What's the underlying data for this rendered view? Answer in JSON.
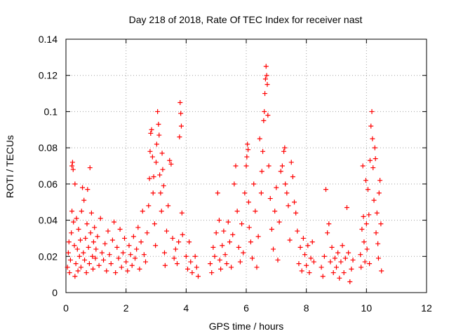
{
  "chart_data": {
    "type": "scatter",
    "title": "Day 218 of 2018, Rate Of TEC Index for receiver nast",
    "xlabel": "GPS time / hours",
    "ylabel": "ROTI / TECUs",
    "xlim": [
      0,
      12
    ],
    "ylim": [
      0,
      0.14
    ],
    "xticks": [
      0,
      2,
      4,
      6,
      8,
      10,
      12
    ],
    "yticks": [
      0,
      0.02,
      0.04,
      0.06,
      0.08,
      0.1,
      0.12,
      0.14
    ],
    "xtick_labels": [
      "0",
      "2",
      "4",
      "6",
      "8",
      "10",
      "12"
    ],
    "ytick_labels": [
      "0",
      "0.02",
      "0.04",
      "0.06",
      "0.08",
      "0.1",
      "0.12",
      "0.14"
    ],
    "grid": true,
    "marker": "+",
    "series": [
      {
        "name": "ROTI",
        "color": "#ff0000",
        "points": [
          [
            0.05,
            0.014
          ],
          [
            0.08,
            0.022
          ],
          [
            0.1,
            0.028
          ],
          [
            0.12,
            0.011
          ],
          [
            0.15,
            0.018
          ],
          [
            0.18,
            0.033
          ],
          [
            0.2,
            0.045
          ],
          [
            0.2,
            0.07
          ],
          [
            0.22,
            0.072
          ],
          [
            0.24,
            0.068
          ],
          [
            0.25,
            0.039
          ],
          [
            0.28,
            0.026
          ],
          [
            0.3,
            0.06
          ],
          [
            0.3,
            0.009
          ],
          [
            0.33,
            0.016
          ],
          [
            0.35,
            0.041
          ],
          [
            0.38,
            0.024
          ],
          [
            0.4,
            0.012
          ],
          [
            0.42,
            0.035
          ],
          [
            0.45,
            0.02
          ],
          [
            0.48,
            0.029
          ],
          [
            0.5,
            0.014
          ],
          [
            0.52,
            0.045
          ],
          [
            0.55,
            0.058
          ],
          [
            0.58,
            0.022
          ],
          [
            0.6,
            0.051
          ],
          [
            0.62,
            0.018
          ],
          [
            0.65,
            0.03
          ],
          [
            0.68,
            0.011
          ],
          [
            0.7,
            0.038
          ],
          [
            0.72,
            0.057
          ],
          [
            0.75,
            0.025
          ],
          [
            0.78,
            0.016
          ],
          [
            0.8,
            0.069
          ],
          [
            0.82,
            0.033
          ],
          [
            0.85,
            0.044
          ],
          [
            0.88,
            0.02
          ],
          [
            0.9,
            0.013
          ],
          [
            0.92,
            0.028
          ],
          [
            0.95,
            0.036
          ],
          [
            0.98,
            0.019
          ],
          [
            1.0,
            0.024
          ],
          [
            1.05,
            0.031
          ],
          [
            1.1,
            0.015
          ],
          [
            1.15,
            0.041
          ],
          [
            1.2,
            0.022
          ],
          [
            1.25,
            0.018
          ],
          [
            1.3,
            0.027
          ],
          [
            1.35,
            0.012
          ],
          [
            1.4,
            0.034
          ],
          [
            1.45,
            0.021
          ],
          [
            1.5,
            0.016
          ],
          [
            1.55,
            0.029
          ],
          [
            1.6,
            0.039
          ],
          [
            1.65,
            0.011
          ],
          [
            1.7,
            0.025
          ],
          [
            1.75,
            0.019
          ],
          [
            1.8,
            0.035
          ],
          [
            1.85,
            0.014
          ],
          [
            1.9,
            0.022
          ],
          [
            1.95,
            0.03
          ],
          [
            2.0,
            0.017
          ],
          [
            2.05,
            0.012
          ],
          [
            2.1,
            0.026
          ],
          [
            2.15,
            0.021
          ],
          [
            2.2,
            0.015
          ],
          [
            2.25,
            0.031
          ],
          [
            2.3,
            0.019
          ],
          [
            2.35,
            0.024
          ],
          [
            2.4,
            0.036
          ],
          [
            2.45,
            0.013
          ],
          [
            2.5,
            0.028
          ],
          [
            2.55,
            0.045
          ],
          [
            2.6,
            0.021
          ],
          [
            2.65,
            0.017
          ],
          [
            2.7,
            0.033
          ],
          [
            2.75,
            0.048
          ],
          [
            2.78,
            0.063
          ],
          [
            2.8,
            0.078
          ],
          [
            2.82,
            0.088
          ],
          [
            2.85,
            0.09
          ],
          [
            2.88,
            0.075
          ],
          [
            2.9,
            0.055
          ],
          [
            2.92,
            0.064
          ],
          [
            2.95,
            0.038
          ],
          [
            2.98,
            0.026
          ],
          [
            3.0,
            0.072
          ],
          [
            3.02,
            0.082
          ],
          [
            3.05,
            0.1
          ],
          [
            3.08,
            0.093
          ],
          [
            3.1,
            0.087
          ],
          [
            3.12,
            0.065
          ],
          [
            3.15,
            0.055
          ],
          [
            3.18,
            0.045
          ],
          [
            3.2,
            0.077
          ],
          [
            3.22,
            0.068
          ],
          [
            3.25,
            0.059
          ],
          [
            3.28,
            0.022
          ],
          [
            3.3,
            0.015
          ],
          [
            3.35,
            0.034
          ],
          [
            3.4,
            0.048
          ],
          [
            3.45,
            0.073
          ],
          [
            3.5,
            0.071
          ],
          [
            3.55,
            0.03
          ],
          [
            3.6,
            0.019
          ],
          [
            3.65,
            0.024
          ],
          [
            3.7,
            0.016
          ],
          [
            3.75,
            0.028
          ],
          [
            3.78,
            0.086
          ],
          [
            3.8,
            0.105
          ],
          [
            3.82,
            0.099
          ],
          [
            3.84,
            0.092
          ],
          [
            3.86,
            0.044
          ],
          [
            3.88,
            0.032
          ],
          [
            4.0,
            0.02
          ],
          [
            4.05,
            0.013
          ],
          [
            4.1,
            0.028
          ],
          [
            4.15,
            0.017
          ],
          [
            4.2,
            0.011
          ],
          [
            4.3,
            0.02
          ],
          [
            4.35,
            0.014
          ],
          [
            4.4,
            0.009
          ],
          [
            4.8,
            0.016
          ],
          [
            4.85,
            0.011
          ],
          [
            4.9,
            0.025
          ],
          [
            4.95,
            0.02
          ],
          [
            5.0,
            0.033
          ],
          [
            5.05,
            0.055
          ],
          [
            5.1,
            0.04
          ],
          [
            5.12,
            0.018
          ],
          [
            5.15,
            0.013
          ],
          [
            5.2,
            0.026
          ],
          [
            5.25,
            0.034
          ],
          [
            5.3,
            0.021
          ],
          [
            5.35,
            0.016
          ],
          [
            5.4,
            0.039
          ],
          [
            5.45,
            0.028
          ],
          [
            5.5,
            0.014
          ],
          [
            5.55,
            0.032
          ],
          [
            5.6,
            0.06
          ],
          [
            5.65,
            0.07
          ],
          [
            5.7,
            0.045
          ],
          [
            5.75,
            0.025
          ],
          [
            5.8,
            0.017
          ],
          [
            5.85,
            0.038
          ],
          [
            5.9,
            0.022
          ],
          [
            5.95,
            0.055
          ],
          [
            6.0,
            0.07
          ],
          [
            6.02,
            0.075
          ],
          [
            6.04,
            0.082
          ],
          [
            6.06,
            0.079
          ],
          [
            6.08,
            0.05
          ],
          [
            6.1,
            0.036
          ],
          [
            6.15,
            0.028
          ],
          [
            6.2,
            0.019
          ],
          [
            6.25,
            0.06
          ],
          [
            6.3,
            0.045
          ],
          [
            6.35,
            0.014
          ],
          [
            6.4,
            0.031
          ],
          [
            6.45,
            0.085
          ],
          [
            6.5,
            0.055
          ],
          [
            6.52,
            0.067
          ],
          [
            6.55,
            0.078
          ],
          [
            6.58,
            0.095
          ],
          [
            6.6,
            0.1
          ],
          [
            6.62,
            0.11
          ],
          [
            6.64,
            0.118
          ],
          [
            6.66,
            0.125
          ],
          [
            6.68,
            0.12
          ],
          [
            6.7,
            0.115
          ],
          [
            6.72,
            0.098
          ],
          [
            6.75,
            0.07
          ],
          [
            6.8,
            0.052
          ],
          [
            6.85,
            0.035
          ],
          [
            6.9,
            0.024
          ],
          [
            6.95,
            0.045
          ],
          [
            7.0,
            0.058
          ],
          [
            7.05,
            0.018
          ],
          [
            7.1,
            0.039
          ],
          [
            7.15,
            0.067
          ],
          [
            7.2,
            0.07
          ],
          [
            7.25,
            0.078
          ],
          [
            7.28,
            0.08
          ],
          [
            7.3,
            0.06
          ],
          [
            7.35,
            0.055
          ],
          [
            7.4,
            0.048
          ],
          [
            7.45,
            0.029
          ],
          [
            7.5,
            0.072
          ],
          [
            7.55,
            0.064
          ],
          [
            7.6,
            0.05
          ],
          [
            7.65,
            0.044
          ],
          [
            7.7,
            0.034
          ],
          [
            7.75,
            0.016
          ],
          [
            7.8,
            0.025
          ],
          [
            7.85,
            0.012
          ],
          [
            7.9,
            0.03
          ],
          [
            7.95,
            0.021
          ],
          [
            8.0,
            0.015
          ],
          [
            8.05,
            0.026
          ],
          [
            8.1,
            0.011
          ],
          [
            8.15,
            0.019
          ],
          [
            8.2,
            0.028
          ],
          [
            8.25,
            0.017
          ],
          [
            8.5,
            0.014
          ],
          [
            8.55,
            0.009
          ],
          [
            8.6,
            0.02
          ],
          [
            8.65,
            0.057
          ],
          [
            8.7,
            0.033
          ],
          [
            8.75,
            0.038
          ],
          [
            8.8,
            0.017
          ],
          [
            8.85,
            0.025
          ],
          [
            8.9,
            0.011
          ],
          [
            8.95,
            0.019
          ],
          [
            9.0,
            0.014
          ],
          [
            9.05,
            0.022
          ],
          [
            9.1,
            0.008
          ],
          [
            9.15,
            0.017
          ],
          [
            9.2,
            0.026
          ],
          [
            9.25,
            0.011
          ],
          [
            9.3,
            0.019
          ],
          [
            9.35,
            0.047
          ],
          [
            9.4,
            0.022
          ],
          [
            9.45,
            0.006
          ],
          [
            9.5,
            0.013
          ],
          [
            9.55,
            0.018
          ],
          [
            9.8,
            0.021
          ],
          [
            9.82,
            0.014
          ],
          [
            9.85,
            0.035
          ],
          [
            9.88,
            0.07
          ],
          [
            9.9,
            0.042
          ],
          [
            9.92,
            0.028
          ],
          [
            9.95,
            0.017
          ],
          [
            9.98,
            0.062
          ],
          [
            10.0,
            0.038
          ],
          [
            10.02,
            0.024
          ],
          [
            10.05,
            0.057
          ],
          [
            10.08,
            0.043
          ],
          [
            10.1,
            0.016
          ],
          [
            10.12,
            0.073
          ],
          [
            10.15,
            0.092
          ],
          [
            10.18,
            0.1
          ],
          [
            10.2,
            0.085
          ],
          [
            10.22,
            0.069
          ],
          [
            10.25,
            0.051
          ],
          [
            10.28,
            0.08
          ],
          [
            10.3,
            0.074
          ],
          [
            10.32,
            0.033
          ],
          [
            10.35,
            0.044
          ],
          [
            10.38,
            0.027
          ],
          [
            10.4,
            0.019
          ],
          [
            10.42,
            0.055
          ],
          [
            10.45,
            0.062
          ],
          [
            10.48,
            0.038
          ],
          [
            10.5,
            0.012
          ]
        ]
      }
    ]
  }
}
